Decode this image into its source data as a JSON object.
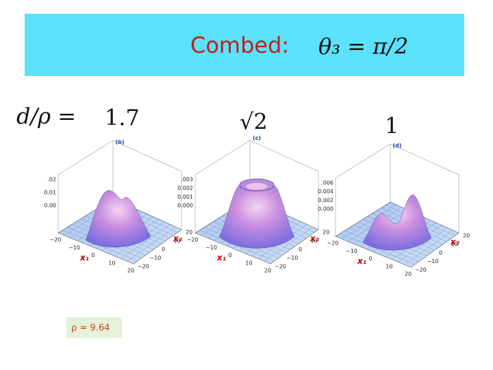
{
  "header": {
    "title": "Combed:",
    "equation": "θ₃ = π/2"
  },
  "ratio_label": "d/ρ =",
  "columns": [
    "1.7",
    "√2",
    "1"
  ],
  "plots": [
    {
      "label": "(b)",
      "z_ticks": [
        ".02",
        "0.01",
        "0.00"
      ],
      "x1_ticks": [
        "−20",
        "−10",
        "0",
        "10",
        "20"
      ],
      "x2_ticks": [
        "20",
        "10",
        "0",
        "−10",
        "−20"
      ],
      "x1_label": "x₁",
      "x2_label": "x₂"
    },
    {
      "label": "(c)",
      "z_ticks": [
        ".003",
        "0.002",
        "0.001",
        "0.000"
      ],
      "x1_ticks": [
        "−20",
        "−10",
        "0",
        "10",
        "20"
      ],
      "x2_ticks": [
        "20",
        "10",
        "0",
        "−10",
        "−20"
      ],
      "x1_label": "x₁",
      "x2_label": "x₂"
    },
    {
      "label": "(d)",
      "z_ticks": [
        ".006",
        "0.004",
        "0.002",
        "0.000"
      ],
      "x1_ticks": [
        "−20",
        "−10",
        "0",
        "10",
        "20"
      ],
      "x2_ticks": [
        "20",
        "10",
        "0",
        "−10",
        "−20"
      ],
      "x1_label": "x₁",
      "x2_label": "x₂"
    }
  ],
  "note": "ρ = 9.64"
}
